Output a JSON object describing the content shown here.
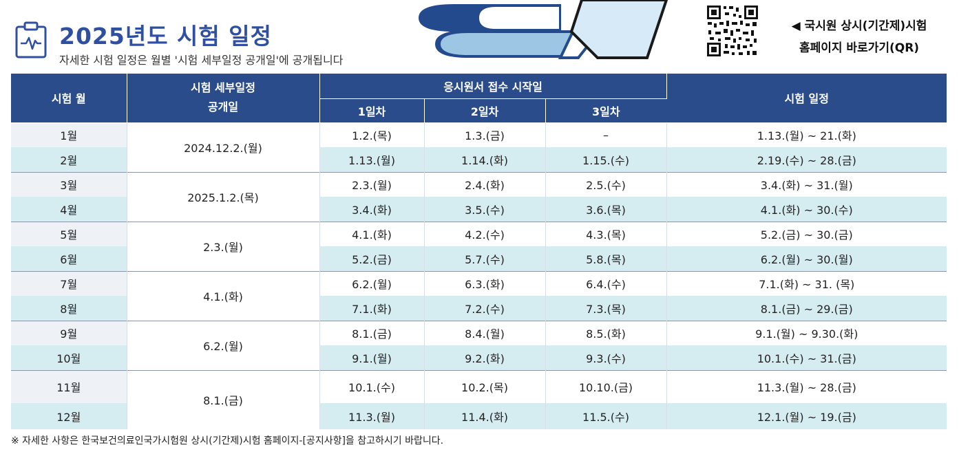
{
  "header": {
    "title": "2025년도 시험 일정",
    "subtitle": "자세한 시험 일정은  월별 '시험 세부일정 공개일'에 공개됩니다",
    "qr_link": {
      "line1": "◀ 국시원 상시(기간제)시험",
      "line2": "홈페이지 바로가기(QR)"
    }
  },
  "table": {
    "headers": {
      "month": "시험 월",
      "publish_line1": "시험 세부일정",
      "publish_line2": "공개일",
      "application": "응시원서 접수 시작일",
      "day1": "1일차",
      "day2": "2일차",
      "day3": "3일차",
      "exam": "시험 일정"
    },
    "rows": [
      {
        "month": "1월",
        "publish": "2024.12.2.(월)",
        "d1": "1.2.(목)",
        "d2": "1.3.(금)",
        "d3": "–",
        "exam": "1.13.(월) ~ 21.(화)"
      },
      {
        "month": "2월",
        "d1": "1.13.(월)",
        "d2": "1.14.(화)",
        "d3": "1.15.(수)",
        "exam": "2.19.(수) ~ 28.(금)"
      },
      {
        "month": "3월",
        "publish": "2025.1.2.(목)",
        "d1": "2.3.(월)",
        "d2": "2.4.(화)",
        "d3": "2.5.(수)",
        "exam": "3.4.(화) ~ 31.(월)"
      },
      {
        "month": "4월",
        "d1": "3.4.(화)",
        "d2": "3.5.(수)",
        "d3": "3.6.(목)",
        "exam": "4.1.(화) ~ 30.(수)"
      },
      {
        "month": "5월",
        "publish": "2.3.(월)",
        "d1": "4.1.(화)",
        "d2": "4.2.(수)",
        "d3": "4.3.(목)",
        "exam": "5.2.(금) ~ 30.(금)"
      },
      {
        "month": "6월",
        "d1": "5.2.(금)",
        "d2": "5.7.(수)",
        "d3": "5.8.(목)",
        "exam": "6.2.(월) ~ 30.(월)"
      },
      {
        "month": "7월",
        "publish": "4.1.(화)",
        "d1": "6.2.(월)",
        "d2": "6.3.(화)",
        "d3": "6.4.(수)",
        "exam": "7.1.(화) ~ 31. (목)"
      },
      {
        "month": "8월",
        "d1": "7.1.(화)",
        "d2": "7.2.(수)",
        "d3": "7.3.(목)",
        "exam": "8.1.(금) ~ 29.(금)"
      },
      {
        "month": "9월",
        "publish": "6.2.(월)",
        "d1": "8.1.(금)",
        "d2": "8.4.(월)",
        "d3": "8.5.(화)",
        "exam": "9.1.(월) ~ 9.30.(화)"
      },
      {
        "month": "10월",
        "d1": "9.1.(월)",
        "d2": "9.2.(화)",
        "d3": "9.3.(수)",
        "exam": "10.1.(수) ~ 31.(금)"
      },
      {
        "month": "11월",
        "publish": "8.1.(금)",
        "d1": "10.1.(수)",
        "d2": "10.2.(목)",
        "d3": "10.10.(금)",
        "exam": "11.3.(월) ~ 28.(금)"
      },
      {
        "month": "12월",
        "d1": "11.3.(월)",
        "d2": "11.4.(화)",
        "d3": "11.5.(수)",
        "exam": "12.1.(월) ~ 19.(금)"
      }
    ]
  },
  "footnote": "※ 자세한 사항은 한국보건의료인국가시험원 상시(기간제)시험 홈페이지-[공지사항]을 참고하시기 바랍니다.",
  "colors": {
    "header_bg": "#2b4c8a",
    "title": "#2f4fa0",
    "row_alt": "#d5ecf0",
    "month_light": "#eef1f5"
  },
  "icons": [
    "calendar-pulse-icon",
    "qr-code-icon",
    "book-stack-illustration"
  ]
}
